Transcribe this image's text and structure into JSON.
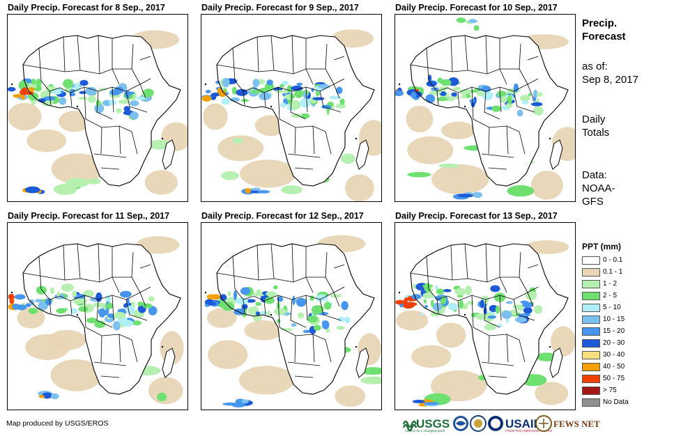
{
  "panels": [
    {
      "title": "Daily Precip. Forecast for 8 Sep., 2017"
    },
    {
      "title": "Daily Precip. Forecast for 9 Sep., 2017"
    },
    {
      "title": "Daily Precip. Forecast for 10 Sep., 2017"
    },
    {
      "title": "Daily Precip. Forecast for 11 Sep., 2017"
    },
    {
      "title": "Daily Precip. Forecast for 12 Sep., 2017"
    },
    {
      "title": "Daily Precip. Forecast for 13 Sep., 2017"
    }
  ],
  "side": {
    "title_line1": "Precip.",
    "title_line2": "Forecast",
    "asof_label": "as of:",
    "asof_date": "Sep 8, 2017",
    "totals_line1": "Daily",
    "totals_line2": "Totals",
    "data_line1": "Data:",
    "data_line2": "NOAA-",
    "data_line3": "GFS"
  },
  "legend": {
    "title": "PPT (mm)",
    "items": [
      {
        "label": "0 - 0.1",
        "color": "#ffffff"
      },
      {
        "label": "0.1 - 1",
        "color": "#e8d5b5"
      },
      {
        "label": "1 - 2",
        "color": "#b5f0b0"
      },
      {
        "label": "2 - 5",
        "color": "#6de070"
      },
      {
        "label": "5 - 10",
        "color": "#b0eef8"
      },
      {
        "label": "10 - 15",
        "color": "#7cc0f0"
      },
      {
        "label": "15 - 20",
        "color": "#4696ee"
      },
      {
        "label": "20 - 30",
        "color": "#1c5ad8"
      },
      {
        "label": "30 - 40",
        "color": "#f8e07c"
      },
      {
        "label": "40 - 50",
        "color": "#f5a000"
      },
      {
        "label": "50 - 75",
        "color": "#f04000"
      },
      {
        "label": "> 75",
        "color": "#a01818"
      },
      {
        "label": "No Data",
        "color": "#909090"
      }
    ]
  },
  "credit": "Map produced by USGS/EROS",
  "logos": {
    "usgs": "USGS",
    "usgs_tagline": "science for a changing world",
    "noaa": "NOAA",
    "usaid": "USAID",
    "usaid_tagline": "FROM THE AMERICAN PEOPLE",
    "fewsnet": "FEWS NET"
  }
}
